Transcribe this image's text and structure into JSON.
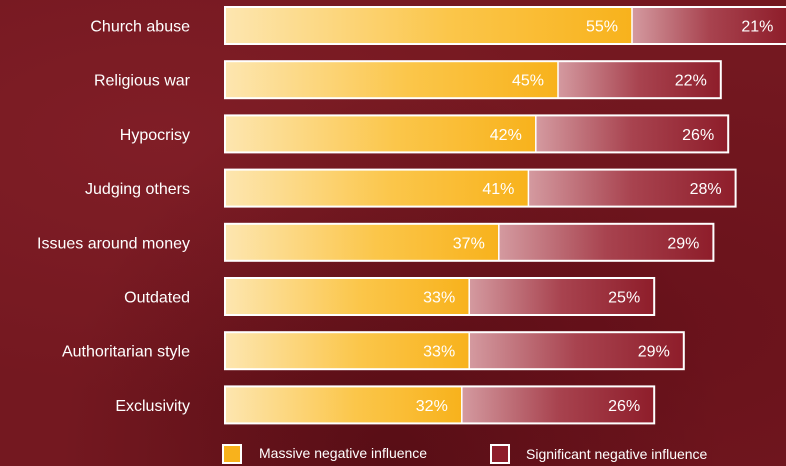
{
  "chart_data": {
    "type": "bar",
    "orientation": "horizontal",
    "stacked": true,
    "categories": [
      "Church abuse",
      "Religious war",
      "Hypocrisy",
      "Judging others",
      "Issues around money",
      "Outdated",
      "Authoritarian style",
      "Exclusivity"
    ],
    "series": [
      {
        "name": "Massive negative influence",
        "values": [
          55,
          45,
          42,
          41,
          37,
          33,
          33,
          32
        ],
        "labels": [
          "55%",
          "45%",
          "42%",
          "41%",
          "37%",
          "33%",
          "33%",
          "32%"
        ],
        "color": "#f8b21c"
      },
      {
        "name": "Significant negative influence",
        "values": [
          21,
          22,
          26,
          28,
          29,
          25,
          29,
          26
        ],
        "labels": [
          "21%",
          "22%",
          "26%",
          "28%",
          "29%",
          "25%",
          "29%",
          "26%"
        ],
        "color": "#8e1d2a"
      }
    ],
    "xlim": [
      0,
      76
    ],
    "grid": false,
    "legend": "bottom"
  },
  "colors": {
    "background": "#741820",
    "massive_light": "#fde6b0",
    "massive": "#f8b21c",
    "significant_light": "#d49aa0",
    "significant": "#8e1d2a",
    "outline": "#ffffff"
  }
}
